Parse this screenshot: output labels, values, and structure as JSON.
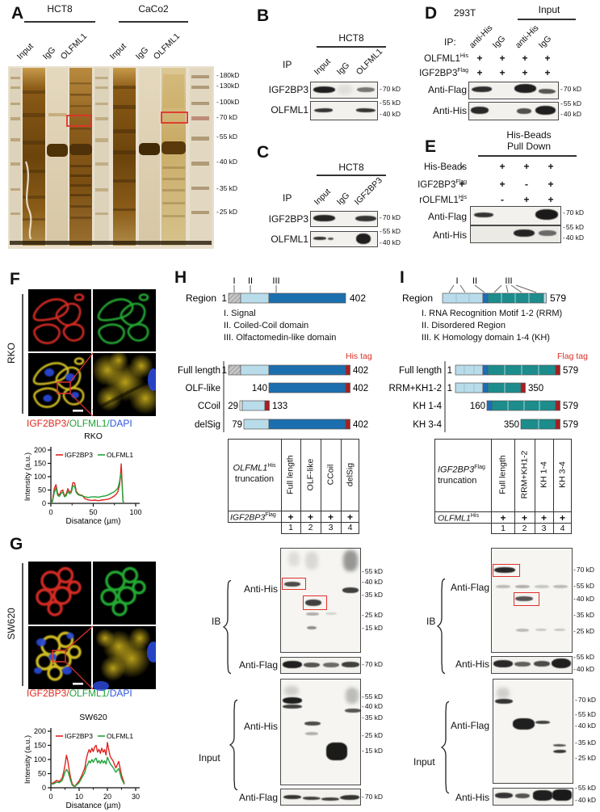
{
  "colors": {
    "accent_red": "#e0312a",
    "tag_red": "#b01f24",
    "if_red": "#e0281e",
    "if_green": "#1fa33a",
    "if_blue": "#2f55e0",
    "domain_lightblue": "#b9dcea",
    "domain_blue": "#1c6fae",
    "domain_teal": "#1d8c8c"
  },
  "panelA": {
    "label": "A",
    "groups": [
      "HCT8",
      "CaCo2"
    ],
    "lanes": [
      "Input",
      "IgG",
      "OLFML1",
      "Input",
      "IgG",
      "OLFML1"
    ],
    "markers": [
      "180kD",
      "130kD",
      "100kD",
      "70 kD",
      "55 kD",
      "40 kD",
      "35 kD",
      "25 kD"
    ]
  },
  "panelB": {
    "label": "B",
    "cell_line": "HCT8",
    "ip_label": "IP",
    "lanes": [
      "Input",
      "IgG",
      "OLFML1"
    ],
    "blot1": {
      "name": "IGF2BP3",
      "m1": "70 kD"
    },
    "blot2": {
      "name": "OLFML1",
      "m1": "55 kD",
      "m2": "40 kD"
    }
  },
  "panelC": {
    "label": "C",
    "cell_line": "HCT8",
    "ip_label": "IP",
    "lanes": [
      "Input",
      "IgG",
      "IGF2BP3"
    ],
    "blot1": {
      "name": "IGF2BP3",
      "m1": "70 kD"
    },
    "blot2": {
      "name": "OLFML1",
      "m1": "55 kD",
      "m2": "40 kD"
    }
  },
  "panelD": {
    "label": "D",
    "cell_line": "293T",
    "input_header": "Input",
    "ip_label": "IP:",
    "lanes": [
      "anti-His",
      "IgG",
      "anti-His",
      "IgG"
    ],
    "rows": [
      {
        "gene": "OLFML1",
        "tag": "His",
        "v": [
          "+",
          "+",
          "+",
          "+"
        ]
      },
      {
        "gene": "IGF2BP3",
        "tag": "Flag",
        "v": [
          "+",
          "+",
          "+",
          "+"
        ]
      }
    ],
    "blot1": {
      "name": "Anti-Flag",
      "m1": "70 kD"
    },
    "blot2": {
      "name": "Anti-His",
      "m1": "55 kD",
      "m2": "40 kD"
    }
  },
  "panelE": {
    "label": "E",
    "header1": "His-Beads",
    "header2": "Pull Down",
    "rows": [
      {
        "gene": "His-Beads",
        "tag": "",
        "v": [
          "-",
          "+",
          "+",
          "+"
        ]
      },
      {
        "gene": "IGF2BP3",
        "tag": "Flag",
        "v": [
          "+",
          "+",
          "-",
          "+"
        ]
      },
      {
        "gene": "rOLFML1",
        "tag": "His",
        "v": [
          "-",
          "-",
          "+",
          "+"
        ]
      }
    ],
    "blot1": {
      "name": "Anti-Flag",
      "m1": "70 kD"
    },
    "blot2": {
      "name": "Anti-His",
      "m1": "55 kD",
      "m2": "40 kD"
    }
  },
  "panelF": {
    "label": "F",
    "cell_line": "RKO",
    "if_label": {
      "p1": "IGF2BP3",
      "s1": "/",
      "p2": "OLFML1",
      "s2": "/",
      "p3": "DAPI"
    }
  },
  "panelG": {
    "label": "G",
    "cell_line": "SW620",
    "if_label": {
      "p1": "IGF2BP3",
      "s1": "/",
      "p2": "OLFML1",
      "s2": "/",
      "p3": "DAPI"
    }
  },
  "panelH": {
    "label": "H",
    "region_label": "Region",
    "region_start": "1",
    "region_end": "402",
    "numerals": [
      "I",
      "II",
      "III"
    ],
    "legend": [
      "I. Signal",
      "II. Coiled-Coil domain",
      "III. Olfactomedin-like domain"
    ],
    "tag_label": "His tag",
    "constructs": [
      {
        "name": "Full length",
        "start": "1",
        "end": "402"
      },
      {
        "name": "OLF-like",
        "start": "140",
        "end": "402"
      },
      {
        "name": "CCoil",
        "start": "29",
        "end": "133"
      },
      {
        "name": "delSig",
        "start": "79",
        "end": "402"
      }
    ],
    "table": {
      "header_gene": "OLFML1",
      "header_tag": "His",
      "header_word": "truncation",
      "columns": [
        "Full length",
        "OLF-like",
        "CCoil",
        "delSig"
      ],
      "cond_gene": "IGF2BP3",
      "cond_tag": "Flag",
      "cond_values": [
        "+",
        "+",
        "+",
        "+"
      ],
      "lane_numbers": [
        "1",
        "2",
        "3",
        "4"
      ]
    },
    "ib_label": "IB",
    "input_label": "Input",
    "ib_blot1": {
      "name": "Anti-His",
      "markers": [
        "55 kD",
        "40 kD",
        "35 kD",
        "25 kD",
        "15 kD"
      ]
    },
    "ib_blot2": {
      "name": "Anti-Flag",
      "markers": [
        "70 kD"
      ]
    },
    "input_blot1": {
      "name": "Anti-His",
      "markers": [
        "55 kD",
        "40 kD",
        "35 kD",
        "25 kD",
        "15 kD"
      ]
    },
    "input_blot2": {
      "name": "Anti-Flag",
      "markers": [
        "70 kD"
      ]
    }
  },
  "panelI": {
    "label": "I",
    "region_label": "Region",
    "region_end": "579",
    "numerals": [
      "I",
      "II",
      "III"
    ],
    "legend": [
      "I. RNA Recognition Motif 1-2 (RRM)",
      "II. Disordered Region",
      "III. K Homology domain 1-4 (KH)"
    ],
    "tag_label": "Flag tag",
    "constructs": [
      {
        "name": "Full length",
        "start": "1",
        "end": "579"
      },
      {
        "name": "RRM+KH1-2",
        "start": "1",
        "end": "350"
      },
      {
        "name": "KH 1-4",
        "start": "160",
        "end": "579"
      },
      {
        "name": "KH 3-4",
        "start": "350",
        "end": "579"
      }
    ],
    "table": {
      "header_gene": "IGF2BP3",
      "header_tag": "Flag",
      "header_word": "truncation",
      "columns": [
        "Full length",
        "RRM+KH1-2",
        "KH 1-4",
        "KH 3-4"
      ],
      "cond_gene": "OLFML1",
      "cond_tag": "His",
      "cond_values": [
        "+",
        "+",
        "+",
        "+"
      ],
      "lane_numbers": [
        "1",
        "2",
        "3",
        "4"
      ]
    },
    "ib_label": "IB",
    "input_label": "Input",
    "ib_blot1": {
      "name": "Anti-Flag",
      "markers": [
        "70 kD",
        "55 kD",
        "40 kD",
        "35 kD",
        "25 kD"
      ]
    },
    "ib_blot2": {
      "name": "Anti-His",
      "markers": [
        "55 kD",
        "40 kD"
      ]
    },
    "input_blot1": {
      "name": "Anti-Flag",
      "markers": [
        "70 kD",
        "55 kD",
        "40 kD",
        "35 kD",
        "25 kD"
      ]
    },
    "input_blot2": {
      "name": "Anti-His",
      "markers": [
        "55 kD",
        "40 kD"
      ]
    }
  },
  "chart_data": [
    {
      "id": "rko",
      "type": "line",
      "title": "RKO",
      "xlabel": "Disatance (µm)",
      "ylabel": "Intensity (a.u.)",
      "xlim": [
        0,
        100
      ],
      "ylim": [
        0,
        200
      ],
      "xticks": [
        0,
        50,
        100
      ],
      "xminor": [
        25,
        75
      ],
      "yticks": [
        0,
        50,
        100,
        150,
        200
      ],
      "grid": false,
      "legend_position": "top",
      "series": [
        {
          "name": "IGF2BP3",
          "color": "#e0231f",
          "x": [
            0,
            2,
            4,
            6,
            8,
            10,
            12,
            14,
            16,
            18,
            20,
            22,
            24,
            26,
            28,
            30,
            32,
            34,
            37,
            40,
            44,
            48,
            52,
            56,
            60,
            64,
            68,
            71,
            74,
            77,
            79,
            81,
            82,
            83,
            84,
            85,
            86
          ],
          "y": [
            0,
            12,
            55,
            70,
            38,
            30,
            46,
            50,
            28,
            34,
            55,
            42,
            46,
            78,
            76,
            45,
            36,
            32,
            30,
            18,
            13,
            11,
            12,
            10,
            12,
            14,
            16,
            20,
            26,
            34,
            44,
            70,
            100,
            148,
            80,
            10,
            0
          ]
        },
        {
          "name": "OLFML1",
          "color": "#23a33a",
          "x": [
            0,
            2,
            4,
            6,
            8,
            10,
            12,
            14,
            16,
            18,
            20,
            22,
            24,
            26,
            28,
            30,
            32,
            34,
            37,
            40,
            44,
            48,
            52,
            56,
            60,
            64,
            68,
            71,
            74,
            77,
            79,
            81,
            82,
            83,
            84,
            85,
            86
          ],
          "y": [
            0,
            8,
            40,
            58,
            30,
            26,
            38,
            42,
            25,
            28,
            45,
            36,
            40,
            66,
            64,
            40,
            33,
            30,
            28,
            25,
            22,
            24,
            25,
            23,
            26,
            28,
            32,
            38,
            42,
            50,
            58,
            82,
            105,
            112,
            70,
            8,
            0
          ]
        }
      ]
    },
    {
      "id": "sw620",
      "type": "line",
      "title": "SW620",
      "xlabel": "Disatance (µm)",
      "ylabel": "Intensity (a.u.)",
      "xlim": [
        0,
        30
      ],
      "ylim": [
        0,
        200
      ],
      "xticks": [
        0,
        10,
        20,
        30
      ],
      "xminor": [
        5,
        15,
        25
      ],
      "yticks": [
        0,
        50,
        100,
        150,
        200
      ],
      "grid": false,
      "legend_position": "top",
      "series": [
        {
          "name": "IGF2BP3",
          "color": "#e0231f",
          "x": [
            0,
            1,
            2,
            3,
            4,
            4.5,
            5,
            5.5,
            6,
            6.5,
            7,
            7.5,
            8,
            8.5,
            9,
            10,
            11,
            12,
            12.5,
            13,
            13.5,
            14,
            14.5,
            15,
            15.5,
            16,
            16.5,
            17,
            17.5,
            18,
            18.5,
            19,
            19.5,
            20,
            20.5,
            21,
            22,
            23,
            24,
            25,
            26
          ],
          "y": [
            15,
            18,
            26,
            22,
            34,
            55,
            80,
            115,
            95,
            60,
            35,
            15,
            8,
            5,
            12,
            24,
            45,
            70,
            100,
            120,
            135,
            125,
            140,
            128,
            145,
            150,
            126,
            136,
            122,
            140,
            126,
            135,
            116,
            160,
            132,
            110,
            95,
            70,
            93,
            45,
            15
          ]
        },
        {
          "name": "OLFML1",
          "color": "#23a33a",
          "x": [
            0,
            1,
            2,
            3,
            4,
            4.5,
            5,
            5.5,
            6,
            6.5,
            7,
            7.5,
            8,
            8.5,
            9,
            10,
            11,
            12,
            12.5,
            13,
            13.5,
            14,
            14.5,
            15,
            15.5,
            16,
            16.5,
            17,
            17.5,
            18,
            18.5,
            19,
            19.5,
            20,
            20.5,
            21,
            22,
            23,
            24,
            25,
            26
          ],
          "y": [
            12,
            14,
            20,
            18,
            26,
            40,
            55,
            65,
            58,
            42,
            25,
            10,
            6,
            4,
            9,
            18,
            36,
            54,
            75,
            82,
            95,
            88,
            100,
            90,
            100,
            105,
            88,
            96,
            86,
            98,
            88,
            95,
            84,
            108,
            96,
            85,
            72,
            55,
            68,
            32,
            12
          ]
        }
      ]
    }
  ]
}
